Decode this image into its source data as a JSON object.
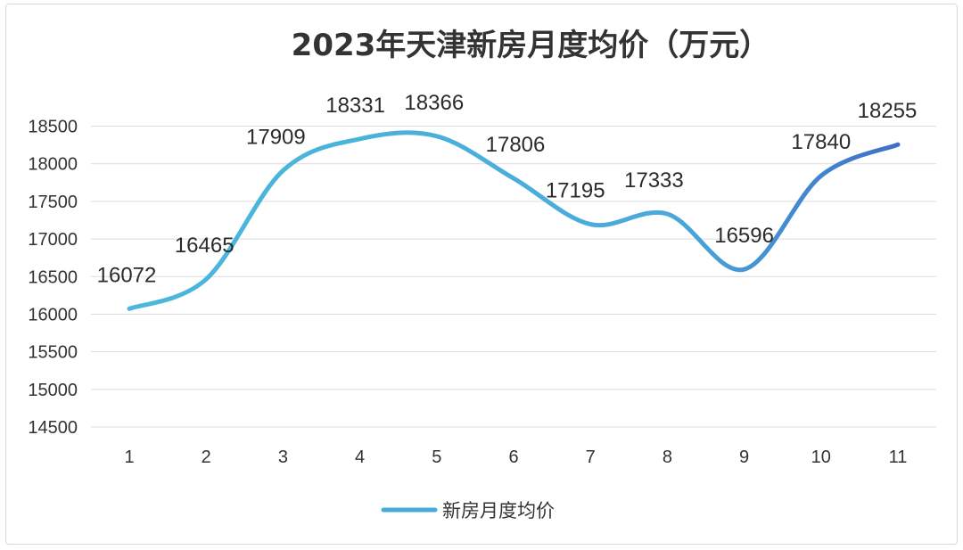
{
  "chart_data": {
    "type": "line",
    "title": "2023年天津新房月度均价（万元）",
    "categories": [
      "1",
      "2",
      "3",
      "4",
      "5",
      "6",
      "7",
      "8",
      "9",
      "10",
      "11"
    ],
    "series": [
      {
        "name": "新房月度均价",
        "values": [
          16072,
          16465,
          17909,
          18331,
          18366,
          17806,
          17195,
          17333,
          16596,
          17840,
          18255
        ]
      }
    ],
    "yticks": [
      14500,
      15000,
      15500,
      16000,
      16500,
      17000,
      17500,
      18000,
      18500
    ],
    "ylim": [
      14500,
      18500
    ],
    "smooth": true,
    "grid": true,
    "legend": "bottom-center",
    "colors": {
      "line_start": "#4bb8dc",
      "line_end": "#3f6fc9"
    }
  }
}
